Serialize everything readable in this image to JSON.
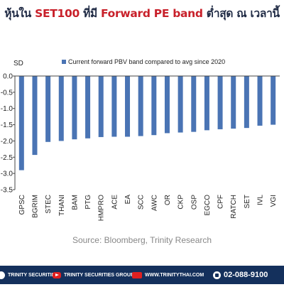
{
  "title": {
    "part1": "หุ้นใน ",
    "part2": "SET100",
    "part3": " ที่มี ",
    "part4": "Forward PE band",
    "part5": " ต่ำสุด ณ เวลานี้"
  },
  "source": "Source: Bloomberg, Trinity Research",
  "footer": {
    "facebook": "TRINITY SECURITIES",
    "youtube": "TRINITY SECURITIES GROUP",
    "website": "WWW.TRINITYTHAI.COM",
    "phone": "02-088-9100"
  },
  "colors": {
    "bar": "#4a74b4",
    "title_dark": "#1f2a44",
    "title_red": "#c8202a",
    "footer_bg": "#14305c"
  },
  "chart_data": {
    "type": "bar",
    "ylabel": "SD",
    "ylim": [
      -3.5,
      0.0
    ],
    "yticks": [
      "0.0",
      "-0.5",
      "-1.0",
      "-1.5",
      "-2.0",
      "-2.5",
      "-3.0",
      "-3.5"
    ],
    "grid": false,
    "legend_position": "top",
    "categories": [
      "GPSC",
      "BGRIM",
      "STEC",
      "THANI",
      "BAM",
      "PTG",
      "HMPRO",
      "ACE",
      "EA",
      "SCC",
      "AWC",
      "OR",
      "CKP",
      "OSP",
      "EGCO",
      "CPF",
      "RATCH",
      "SET",
      "IVL",
      "VGI"
    ],
    "series": [
      {
        "name": "Current forward PBV band compared to avg since 2020",
        "values": [
          -2.9,
          -2.43,
          -2.03,
          -2.0,
          -1.95,
          -1.92,
          -1.88,
          -1.87,
          -1.87,
          -1.85,
          -1.82,
          -1.76,
          -1.74,
          -1.72,
          -1.67,
          -1.64,
          -1.62,
          -1.6,
          -1.53,
          -1.5
        ]
      }
    ]
  }
}
